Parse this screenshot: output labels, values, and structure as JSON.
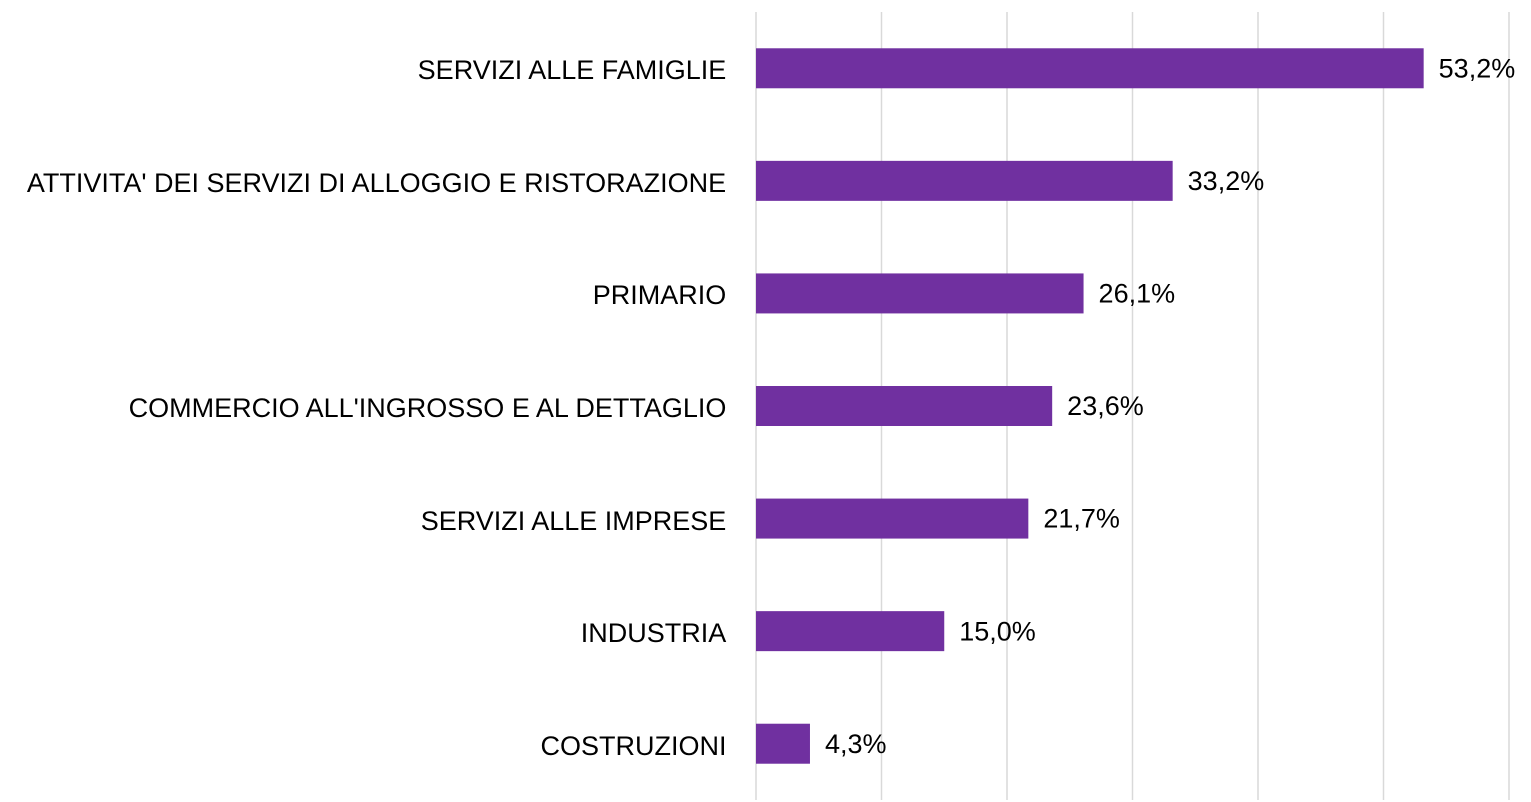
{
  "chart_data": {
    "type": "barh",
    "categories": [
      "SERVIZI ALLE FAMIGLIE",
      "ATTIVITA' DEI SERVIZI DI ALLOGGIO E RISTORAZIONE",
      "PRIMARIO",
      "COMMERCIO ALL'INGROSSO E AL DETTAGLIO",
      "SERVIZI ALLE IMPRESE",
      "INDUSTRIA",
      "COSTRUZIONI"
    ],
    "values": [
      53.2,
      33.2,
      26.1,
      23.6,
      21.7,
      15.0,
      4.3
    ],
    "value_labels": [
      "53,2%",
      "33,2%",
      "26,1%",
      "23,6%",
      "21,7%",
      "15,0%",
      "4,3%"
    ],
    "color": "#7030a0",
    "xlim": [
      0,
      60
    ],
    "xticks": [
      0,
      10,
      20,
      30,
      40,
      50,
      60
    ],
    "grid": true
  }
}
